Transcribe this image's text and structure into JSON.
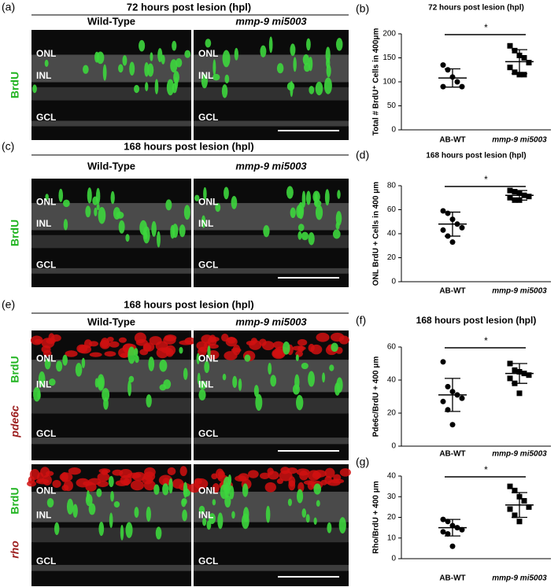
{
  "image_figures": [
    {
      "panel_label": "(a)",
      "title": "72 hours post lesion (hpl)",
      "columns": [
        "Wild-Type",
        "mmp-9 mi5003"
      ],
      "rows": [
        [
          "BrdU"
        ]
      ],
      "layers": [
        "ONL",
        "INL",
        "GCL"
      ]
    },
    {
      "panel_label": "(c)",
      "title": "168 hours post lesion (hpl)",
      "columns": [
        "Wild-Type",
        "mmp-9 mi5003"
      ],
      "rows": [
        [
          "BrdU"
        ]
      ],
      "layers": [
        "ONL",
        "INL",
        "GCL"
      ]
    },
    {
      "panel_label": "(e)",
      "title": "168 hours post lesion (hpl)",
      "columns": [
        "Wild-Type",
        "mmp-9 mi5003"
      ],
      "rows": [
        [
          "BrdU",
          "pde6c"
        ],
        [
          "BrdU",
          "rho"
        ]
      ],
      "layers": [
        "ONL",
        "INL",
        "GCL"
      ]
    }
  ],
  "chart_data": [
    {
      "type": "scatter",
      "panel_label": "(b)",
      "title": "72 hours post lesion (hpl)",
      "y_label": "Total # BrdU⁺ Cells in 400μm",
      "categories": [
        "AB-WT",
        "mmp-9 mi5003"
      ],
      "points": [
        [
          135,
          125,
          110,
          100,
          90,
          90
        ],
        [
          175,
          165,
          155,
          150,
          140,
          130,
          120,
          115,
          115
        ]
      ],
      "means": [
        108,
        142
      ],
      "sd": [
        19,
        25
      ],
      "ylim": [
        0,
        200
      ],
      "yticks": [
        0,
        50,
        100,
        150,
        200
      ],
      "significance": "*"
    },
    {
      "type": "scatter",
      "panel_label": "(d)",
      "title": "168 hours post lesion (hpl)",
      "y_label": "ONL BrdU + Cells in 400 μm",
      "categories": [
        "AB-WT",
        "mmp-9 mi5003"
      ],
      "points": [
        [
          59,
          57,
          52,
          48,
          45,
          43,
          38,
          33
        ],
        [
          76,
          75,
          74,
          72,
          71,
          70,
          68,
          68
        ]
      ],
      "means": [
        48,
        72
      ],
      "sd": [
        10,
        4
      ],
      "ylim": [
        0,
        80
      ],
      "yticks": [
        0,
        20,
        40,
        60,
        80
      ],
      "significance": "*"
    },
    {
      "type": "scatter",
      "panel_label": "(f)",
      "title": "168 hours post lesion (hpl)",
      "y_label": "Pde6c/BrdU + 400 μm",
      "categories": [
        "AB-WT",
        "mmp-9 mi5003"
      ],
      "points": [
        [
          51,
          36,
          33,
          31,
          29,
          27,
          22,
          13
        ],
        [
          50,
          46,
          45,
          44,
          43,
          41,
          38,
          32
        ]
      ],
      "means": [
        31,
        44
      ],
      "sd": [
        10,
        6
      ],
      "ylim": [
        0,
        60
      ],
      "yticks": [
        0,
        20,
        40,
        60
      ],
      "significance": "*"
    },
    {
      "type": "scatter",
      "panel_label": "(g)",
      "y_label": "Rho/BrdU + 400 μm",
      "categories": [
        "AB-WT",
        "mmp-9 mi5003"
      ],
      "points": [
        [
          19,
          18,
          16,
          15,
          14,
          13,
          12,
          6
        ],
        [
          35,
          33,
          30,
          28,
          25,
          24,
          21,
          18
        ]
      ],
      "means": [
        15,
        26
      ],
      "sd": [
        4,
        6
      ],
      "ylim": [
        0,
        40
      ],
      "yticks": [
        0,
        10,
        20,
        30,
        40
      ],
      "significance": "*"
    }
  ]
}
